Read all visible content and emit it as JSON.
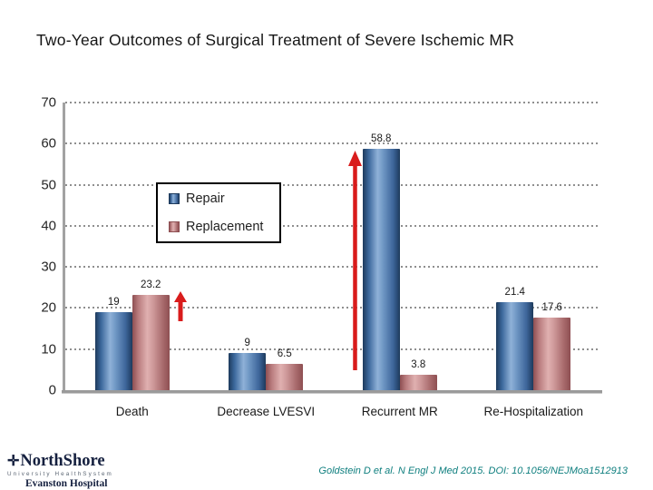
{
  "title": "Two-Year Outcomes of Surgical Treatment of Severe Ischemic MR",
  "chart_data": {
    "type": "bar",
    "title": "Two-Year Outcomes of Surgical Treatment of Severe Ischemic MR",
    "categories": [
      "Death",
      "Decrease LVESVI",
      "Recurrent MR",
      "Re-Hospitalization"
    ],
    "series": [
      {
        "name": "Repair",
        "values": [
          19,
          9,
          58.8,
          21.4
        ],
        "labels": [
          "19",
          "9",
          "58.8",
          "21.4"
        ]
      },
      {
        "name": "Replacement",
        "values": [
          23.2,
          6.5,
          3.8,
          17.6
        ],
        "labels": [
          "23.2",
          "6.5",
          "3.8",
          "17.6"
        ]
      }
    ],
    "xlabel": "",
    "ylabel": "",
    "ylim": [
      0,
      70
    ],
    "ytick_interval": 10,
    "yticks": [
      "0",
      "10",
      "20",
      "30",
      "40",
      "50",
      "60",
      "70"
    ],
    "grid": "horizontal-dotted",
    "legend_position": "inside-upper-left",
    "annotations": [
      {
        "id": "up-arrow-death-replacement",
        "type": "up-arrow",
        "category_index": 0,
        "series_index": 1,
        "size": "small"
      },
      {
        "id": "up-arrow-recurrent-repair",
        "type": "up-arrow",
        "category_index": 2,
        "series_index": 0,
        "size": "large"
      }
    ]
  },
  "colors": {
    "repair_edge": "#1d3a5c",
    "repair_light": "#8fb1d8",
    "replacement_edge": "#8e4f52",
    "replacement_light": "#e0b0b0",
    "arrow_red": "#d91c1c",
    "grid_gray": "#8f8f8f",
    "axis_gray": "#9a9a9a",
    "citation_teal": "#0f7f7f"
  },
  "footer": {
    "logo": {
      "symbol": "✛",
      "name": "NorthShore",
      "subtitle": "University HealthSystem",
      "hospital": "Evanston Hospital"
    },
    "citation": "Goldstein D et al. N Engl J Med 2015. DOI: 10.1056/NEJMoa1512913"
  }
}
